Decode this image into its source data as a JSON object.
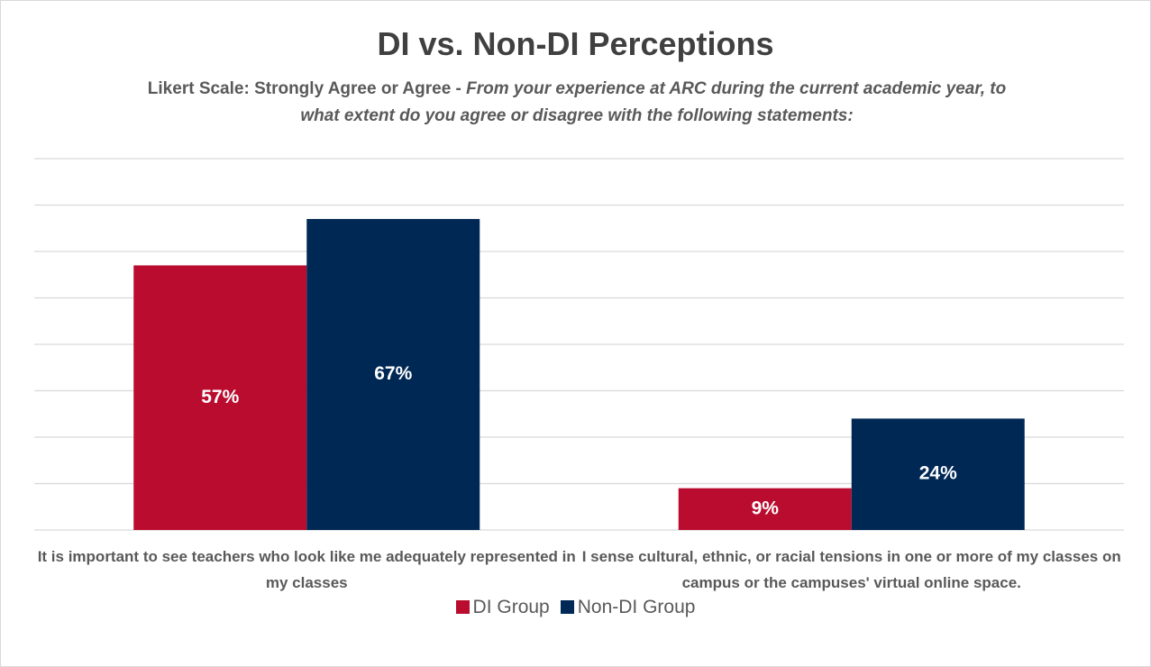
{
  "chart_data": {
    "type": "bar",
    "title": "DI vs. Non-DI Perceptions",
    "subtitle": "Likert Scale: Strongly Agree or Agree -",
    "subtitle_question": "From your experience at ARC during the current academic year, to what extent do you agree or disagree with the following statements:",
    "categories": [
      "It is important to see teachers who look like me adequately represented in my classes",
      "I sense cultural, ethnic, or racial tensions in one or more of my classes on campus or the campuses' virtual online space."
    ],
    "series": [
      {
        "name": "DI Group",
        "color": "#ba0c2f",
        "values": [
          57,
          9
        ],
        "value_labels": [
          "57%",
          "9%"
        ]
      },
      {
        "name": "Non-DI Group",
        "color": "#002855",
        "values": [
          67,
          24
        ],
        "value_labels": [
          "67%",
          "24%"
        ]
      }
    ],
    "ylim": [
      0,
      80
    ],
    "yticks": [
      0,
      10,
      20,
      30,
      40,
      50,
      60,
      70,
      80
    ],
    "grid": true
  }
}
